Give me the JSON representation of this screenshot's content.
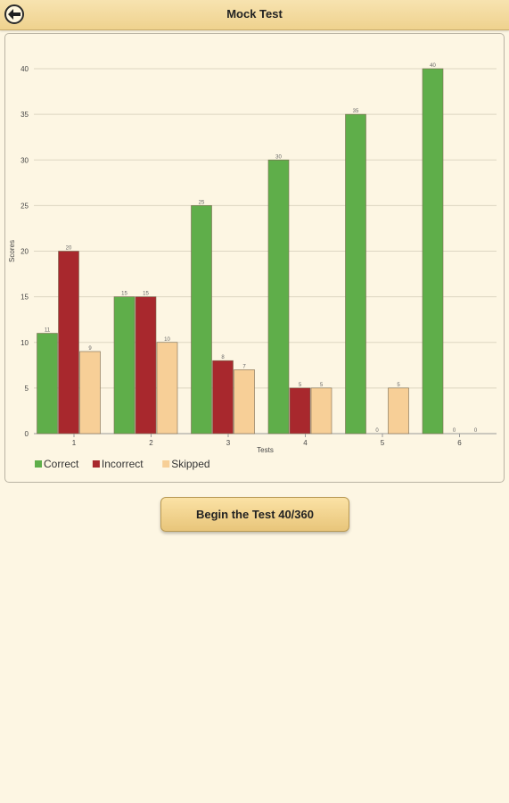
{
  "header": {
    "title": "Mock Test",
    "back_icon": "arrow-left-icon"
  },
  "chart_data": {
    "type": "bar",
    "xlabel": "Tests",
    "ylabel": "Scores",
    "categories": [
      "1",
      "2",
      "3",
      "4",
      "5",
      "6"
    ],
    "ylim": [
      0,
      40
    ],
    "yticks": [
      0,
      5,
      10,
      15,
      20,
      25,
      30,
      35,
      40
    ],
    "grid": true,
    "legend_position": "bottom-left",
    "series": [
      {
        "name": "Correct",
        "color": "#5fae4a",
        "values": [
          11,
          15,
          25,
          30,
          35,
          40
        ]
      },
      {
        "name": "Incorrect",
        "color": "#a8282d",
        "values": [
          20,
          15,
          8,
          5,
          0,
          0
        ]
      },
      {
        "name": "Skipped",
        "color": "#f7cf97",
        "values": [
          9,
          10,
          7,
          5,
          5,
          0
        ]
      }
    ]
  },
  "actions": {
    "begin_label": "Begin the Test 40/360"
  }
}
